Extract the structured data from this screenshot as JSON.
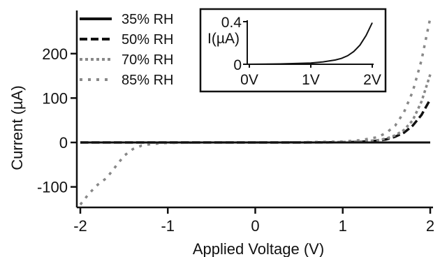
{
  "chart_data": [
    {
      "type": "line",
      "xlabel": "Applied Voltage (V)",
      "ylabel": "Current (µA)",
      "xlim": [
        -2,
        2
      ],
      "ylim": [
        -150,
        290
      ],
      "x_ticks": [
        {
          "value": -2,
          "label": "-2"
        },
        {
          "value": -1,
          "label": "-1"
        },
        {
          "value": 0,
          "label": "0"
        },
        {
          "value": 1,
          "label": "1"
        },
        {
          "value": 2,
          "label": "2"
        }
      ],
      "y_ticks": [
        {
          "value": -100,
          "label": "-100"
        },
        {
          "value": 0,
          "label": "0"
        },
        {
          "value": 100,
          "label": "100"
        },
        {
          "value": 200,
          "label": "200"
        }
      ],
      "legend_position": "top-left",
      "series": [
        {
          "name": "35% RH",
          "color": "#111111",
          "dash": "solid",
          "x": [
            -2,
            -1.5,
            -1,
            -0.5,
            0,
            0.5,
            1,
            1.5,
            2
          ],
          "y": [
            0,
            0,
            0,
            0,
            0,
            0,
            0,
            0,
            0
          ]
        },
        {
          "name": "50% RH",
          "color": "#111111",
          "dash": "dash",
          "x": [
            -2,
            -1,
            0,
            0.5,
            1,
            1.2,
            1.4,
            1.5,
            1.6,
            1.7,
            1.8,
            1.9,
            2
          ],
          "y": [
            0,
            0,
            0,
            0,
            0.5,
            1.5,
            4,
            7,
            13,
            22,
            38,
            62,
            97
          ]
        },
        {
          "name": "70% RH",
          "color": "#888888",
          "dash": "dot",
          "x": [
            -2,
            -1,
            0,
            0.5,
            1,
            1.2,
            1.4,
            1.5,
            1.6,
            1.7,
            1.8,
            1.9,
            2
          ],
          "y": [
            0,
            0,
            0,
            0,
            1,
            2,
            5,
            9,
            16,
            28,
            50,
            92,
            153
          ]
        },
        {
          "name": "85% RH",
          "color": "#888888",
          "dash": "sparse-dot",
          "x": [
            -2,
            -1.9,
            -1.8,
            -1.7,
            -1.6,
            -1.5,
            -1.4,
            -1.3,
            -1.2,
            -1.1,
            -1,
            -0.5,
            0,
            0.5,
            1,
            1.2,
            1.4,
            1.5,
            1.6,
            1.7,
            1.8,
            1.9,
            2
          ],
          "y": [
            -140,
            -115,
            -95,
            -80,
            -55,
            -30,
            -15,
            -7,
            -4,
            -2,
            -1,
            0,
            0,
            0.5,
            2,
            5,
            12,
            22,
            38,
            68,
            115,
            185,
            280
          ]
        }
      ]
    },
    {
      "type": "line",
      "xlabel": "",
      "ylabel": "I(µA)",
      "xlim": [
        0,
        2
      ],
      "ylim": [
        0,
        0.4
      ],
      "x_ticks": [
        {
          "value": 0,
          "label": "0V"
        },
        {
          "value": 1,
          "label": "1V"
        },
        {
          "value": 2,
          "label": "2V"
        }
      ],
      "y_ticks": [
        {
          "value": 0,
          "label": "0"
        },
        {
          "value": 0.4,
          "label": "0.4"
        }
      ],
      "series": [
        {
          "color": "#111111",
          "x": [
            0,
            0.5,
            1.0,
            1.2,
            1.4,
            1.5,
            1.6,
            1.7,
            1.8,
            1.9,
            2.0
          ],
          "y": [
            0,
            0.003,
            0.012,
            0.022,
            0.04,
            0.055,
            0.08,
            0.12,
            0.18,
            0.27,
            0.39
          ]
        }
      ]
    }
  ]
}
